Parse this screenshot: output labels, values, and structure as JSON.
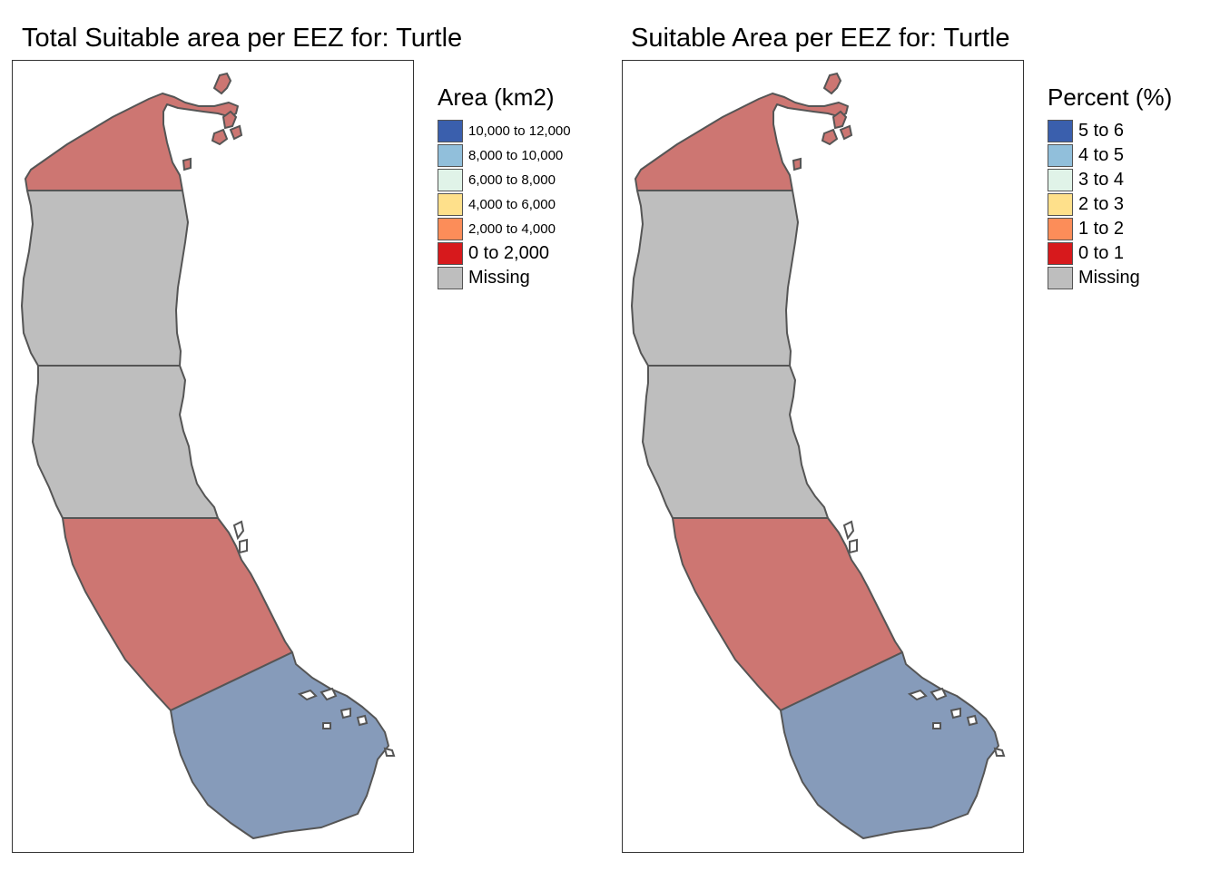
{
  "colors": {
    "class_red": "#d7191c",
    "class_orange": "#fc8d59",
    "class_yellow": "#fee08b",
    "class_mint": "#e0f3e8",
    "class_lightblue": "#91bfdb",
    "class_blue": "#3a5fad",
    "missing": "#bebebe",
    "region_red_display": "#cd7672",
    "region_blue_display": "#869bba",
    "outline": "#555555"
  },
  "left": {
    "title": "Total Suitable area per EEZ for: Turtle",
    "legend": {
      "title": "Area (km2)",
      "items": [
        {
          "label": "10,000 to 12,000",
          "color": "#3a5fad"
        },
        {
          "label": "8,000 to 10,000",
          "color": "#91bfdb"
        },
        {
          "label": "6,000 to 8,000",
          "color": "#e0f3e8"
        },
        {
          "label": "4,000 to 6,000",
          "color": "#fee08b"
        },
        {
          "label": "2,000 to 4,000",
          "color": "#fc8d59"
        },
        {
          "label": "0 to 2,000",
          "color": "#d7191c"
        },
        {
          "label": "Missing",
          "color": "#bebebe"
        }
      ]
    }
  },
  "right": {
    "title": "Suitable Area per EEZ for: Turtle",
    "legend": {
      "title": "Percent (%)",
      "items": [
        {
          "label": "5 to 6",
          "color": "#3a5fad"
        },
        {
          "label": "4 to 5",
          "color": "#91bfdb"
        },
        {
          "label": "3 to 4",
          "color": "#e0f3e8"
        },
        {
          "label": "2 to 3",
          "color": "#fee08b"
        },
        {
          "label": "1 to 2",
          "color": "#fc8d59"
        },
        {
          "label": "0 to 1",
          "color": "#d7191c"
        },
        {
          "label": "Missing",
          "color": "#bebebe"
        }
      ]
    }
  },
  "regions": [
    {
      "name": "north",
      "class": "low"
    },
    {
      "name": "central-north",
      "class": "missing"
    },
    {
      "name": "central",
      "class": "missing"
    },
    {
      "name": "central-south",
      "class": "low"
    },
    {
      "name": "south",
      "class": "high"
    }
  ]
}
